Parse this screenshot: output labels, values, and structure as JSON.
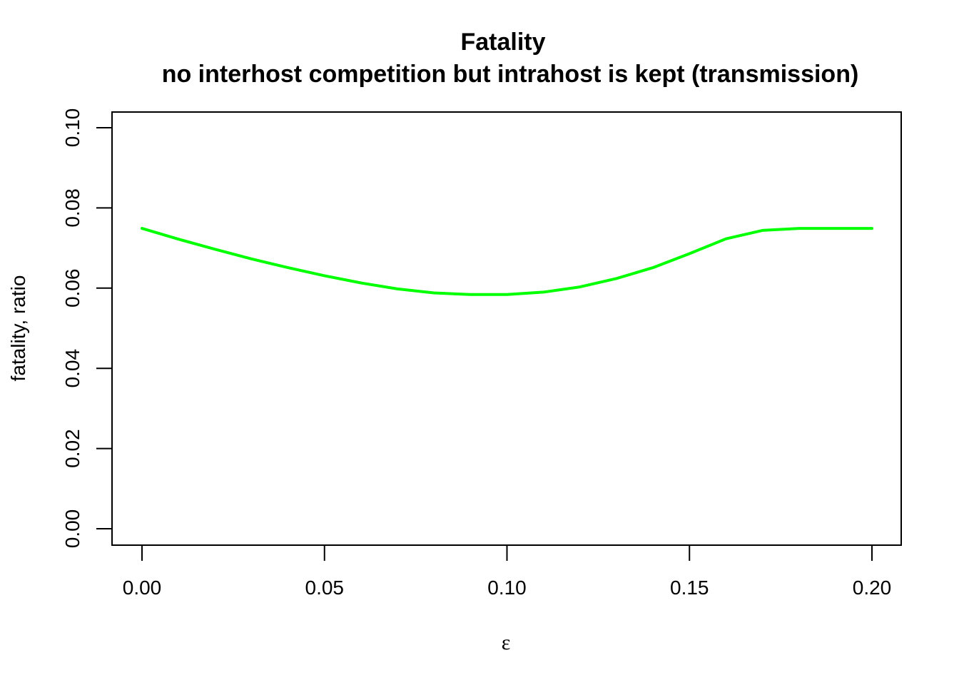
{
  "chart_data": {
    "type": "line",
    "title": "Fatality",
    "subtitle": "no interhost competition but intrahost is kept (transmission)",
    "xlabel": "ε",
    "ylabel": "fatality, ratio",
    "xlim": [
      0.0,
      0.2
    ],
    "ylim": [
      0.0,
      0.1
    ],
    "x_ticks": [
      "0.00",
      "0.05",
      "0.10",
      "0.15",
      "0.20"
    ],
    "y_ticks": [
      "0.00",
      "0.02",
      "0.04",
      "0.06",
      "0.08",
      "0.10"
    ],
    "grid": false,
    "series": [
      {
        "color": "#00ff00",
        "x": [
          0.0,
          0.01,
          0.02,
          0.03,
          0.04,
          0.05,
          0.06,
          0.07,
          0.08,
          0.09,
          0.1,
          0.11,
          0.12,
          0.13,
          0.14,
          0.15,
          0.16,
          0.17,
          0.18,
          0.19,
          0.2
        ],
        "y": [
          0.0749,
          0.0722,
          0.0697,
          0.0673,
          0.0651,
          0.0631,
          0.0613,
          0.0598,
          0.0588,
          0.0584,
          0.0584,
          0.059,
          0.0603,
          0.0624,
          0.0651,
          0.0686,
          0.0723,
          0.0744,
          0.0749,
          0.0749,
          0.0749
        ]
      }
    ]
  }
}
